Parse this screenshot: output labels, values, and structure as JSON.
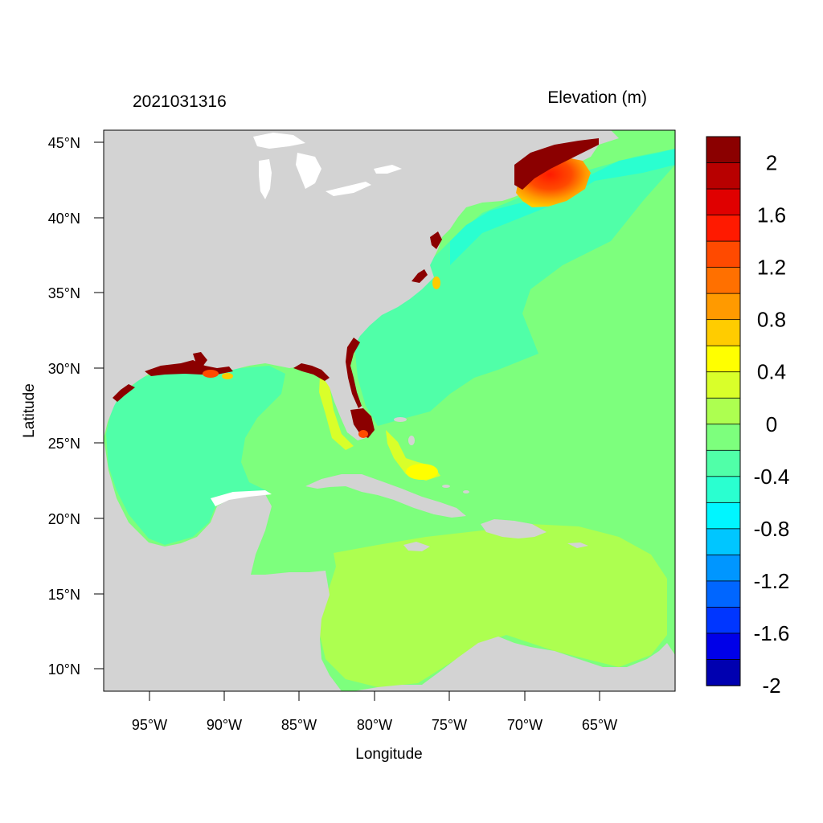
{
  "header": {
    "datetime": "2021031316",
    "variable": "Elevation (m)"
  },
  "axes": {
    "xlabel": "Longitude",
    "ylabel": "Latitude",
    "x_ticks": [
      "95°W",
      "90°W",
      "85°W",
      "80°W",
      "75°W",
      "70°W",
      "65°W"
    ],
    "y_ticks": [
      "45°N",
      "40°N",
      "35°N",
      "30°N",
      "25°N",
      "20°N",
      "15°N",
      "10°N"
    ]
  },
  "colorbar": {
    "labels": [
      "2",
      "1.6",
      "1.2",
      "0.8",
      "0.4",
      "0",
      "-0.4",
      "-0.8",
      "-1.2",
      "-1.6",
      "-2"
    ],
    "colors": [
      "#8b0000",
      "#b80000",
      "#e00000",
      "#ff1a00",
      "#ff4a00",
      "#ff7000",
      "#ff9a00",
      "#ffcc00",
      "#ffff00",
      "#d9ff2a",
      "#adff50",
      "#7dff7d",
      "#50ffa8",
      "#2affd0",
      "#00f6ff",
      "#00c6ff",
      "#0096ff",
      "#0066ff",
      "#0036ff",
      "#0000e8",
      "#0000b0"
    ]
  },
  "colors": {
    "land": "#d3d3d3",
    "lake": "#ffffff",
    "ocean_default": "#7dff7d"
  }
}
